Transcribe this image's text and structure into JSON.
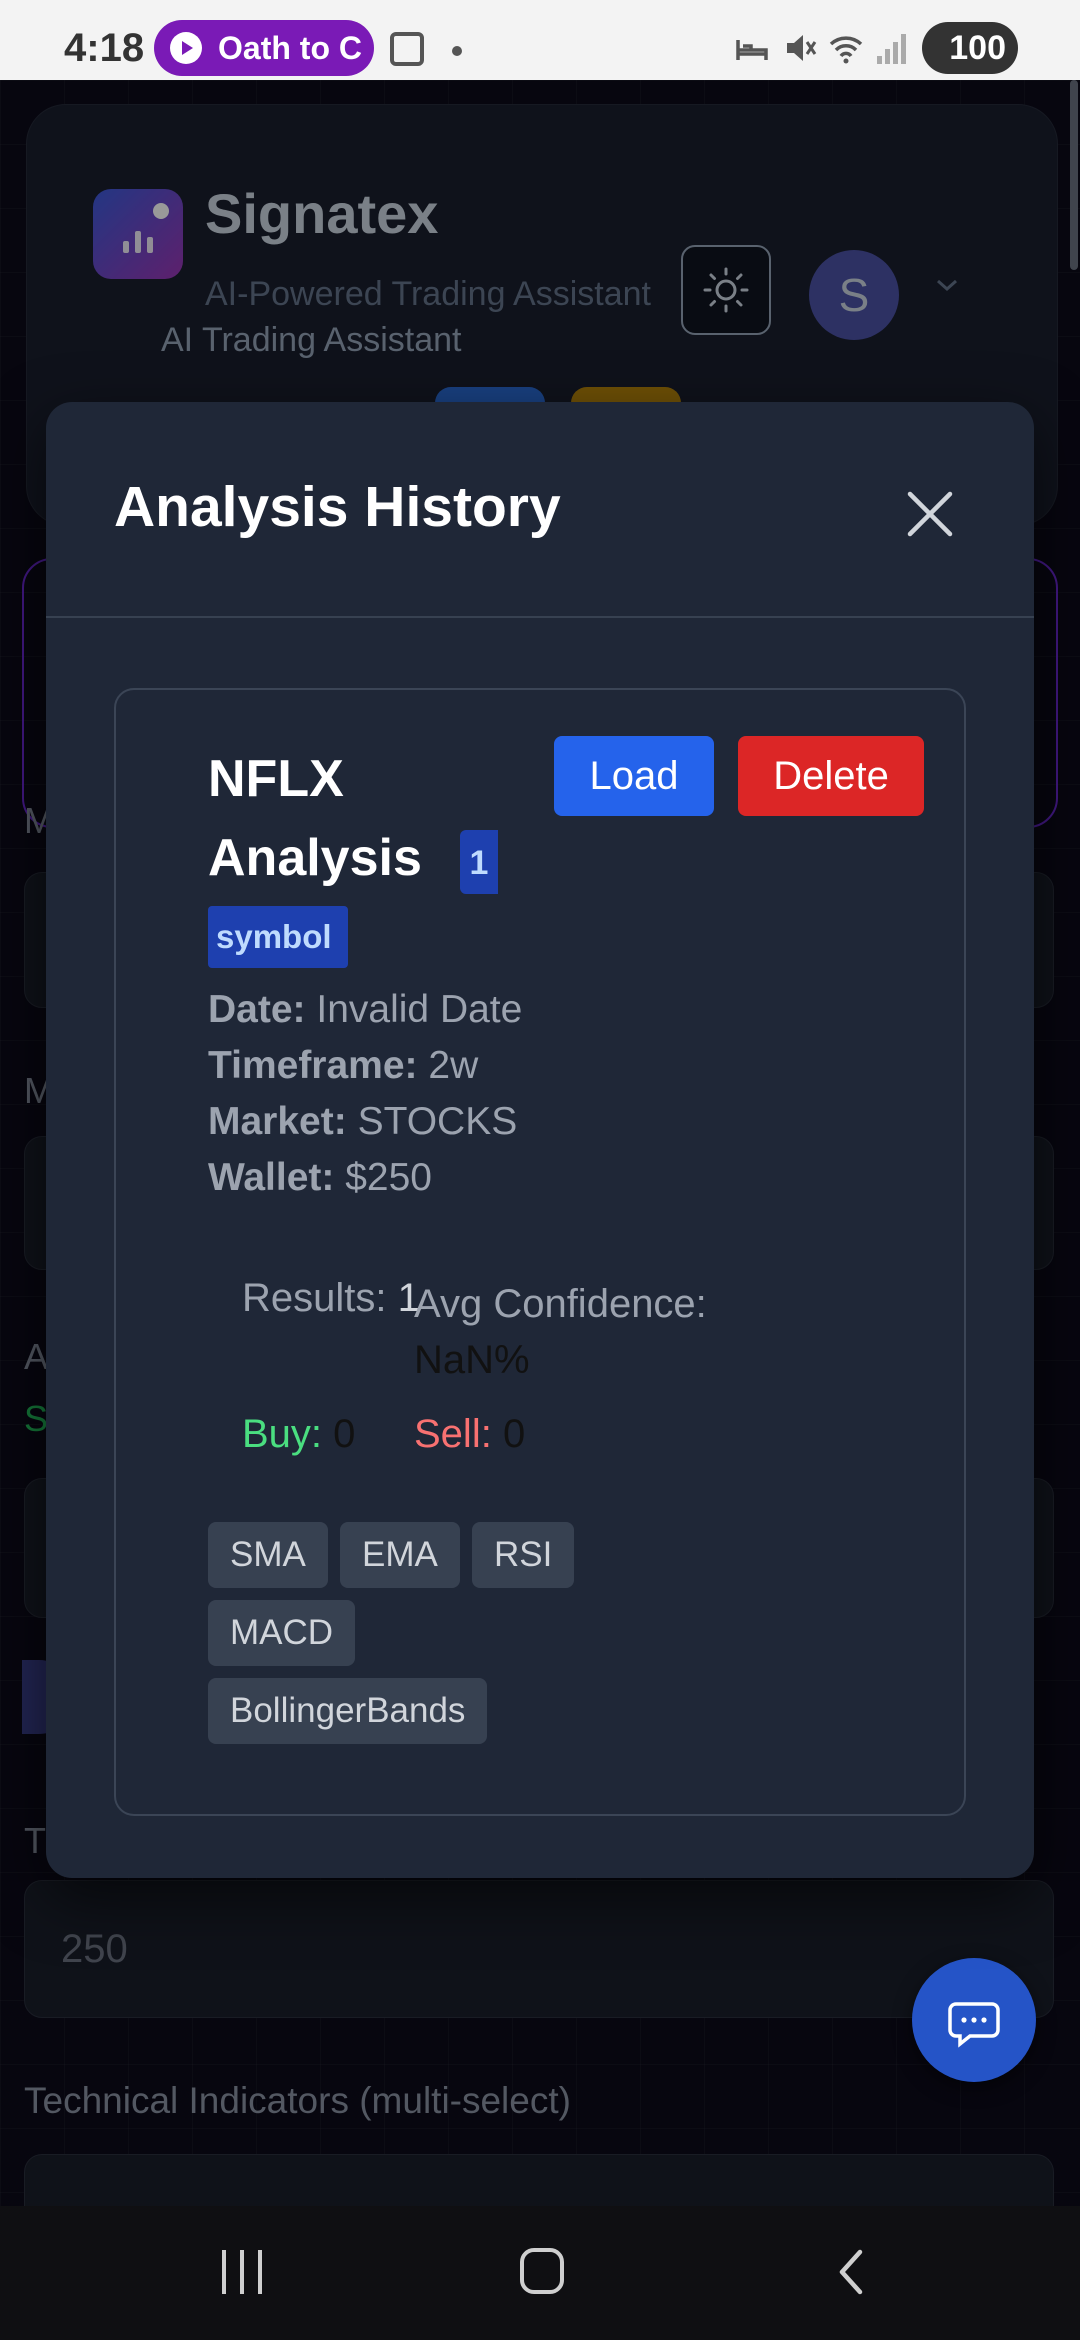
{
  "status_bar": {
    "time": "4:18",
    "notification_pill": "Oath to C",
    "battery": "100"
  },
  "app": {
    "brand": {
      "title": "Signatex",
      "subtitle": "AI-Powered Trading Assistant",
      "tagline": "AI Trading Assistant"
    },
    "avatar_initial": "S",
    "wallet_value": "250",
    "technical_indicators_label": "Technical Indicators (multi-select)",
    "partial_letters": [
      "M",
      "M",
      "A",
      "S",
      "T"
    ]
  },
  "modal": {
    "title": "Analysis History",
    "entries": [
      {
        "title": "NFLX Analysis",
        "count_badge": "1",
        "symbol_badge": "symbol",
        "load_label": "Load",
        "delete_label": "Delete",
        "date_label": "Date:",
        "date_value": "Invalid Date",
        "timeframe_label": "Timeframe:",
        "timeframe_value": "2w",
        "market_label": "Market:",
        "market_value": "STOCKS",
        "wallet_label": "Wallet:",
        "wallet_value": "$250",
        "results_label": "Results:",
        "results_value": "1",
        "avg_confidence_label": "Avg Confidence:",
        "avg_confidence_value": "NaN%",
        "buy_label": "Buy:",
        "buy_value": "0",
        "sell_label": "Sell:",
        "sell_value": "0",
        "indicators": [
          "SMA",
          "EMA",
          "RSI",
          "MACD",
          "BollingerBands"
        ]
      }
    ]
  },
  "colors": {
    "load_button": "#2563eb",
    "delete_button": "#dc2626",
    "buy_text": "#4ade80",
    "sell_text": "#f87171",
    "modal_background": "#1f2737"
  },
  "icons": [
    "play-icon",
    "screenshot-icon",
    "bed-icon",
    "mute-icon",
    "wifi-icon",
    "signal-icon",
    "sun-icon",
    "chevron-down-icon",
    "search-icon",
    "settings-icon",
    "close-icon",
    "chat-icon",
    "recents-icon",
    "home-icon",
    "back-icon"
  ]
}
